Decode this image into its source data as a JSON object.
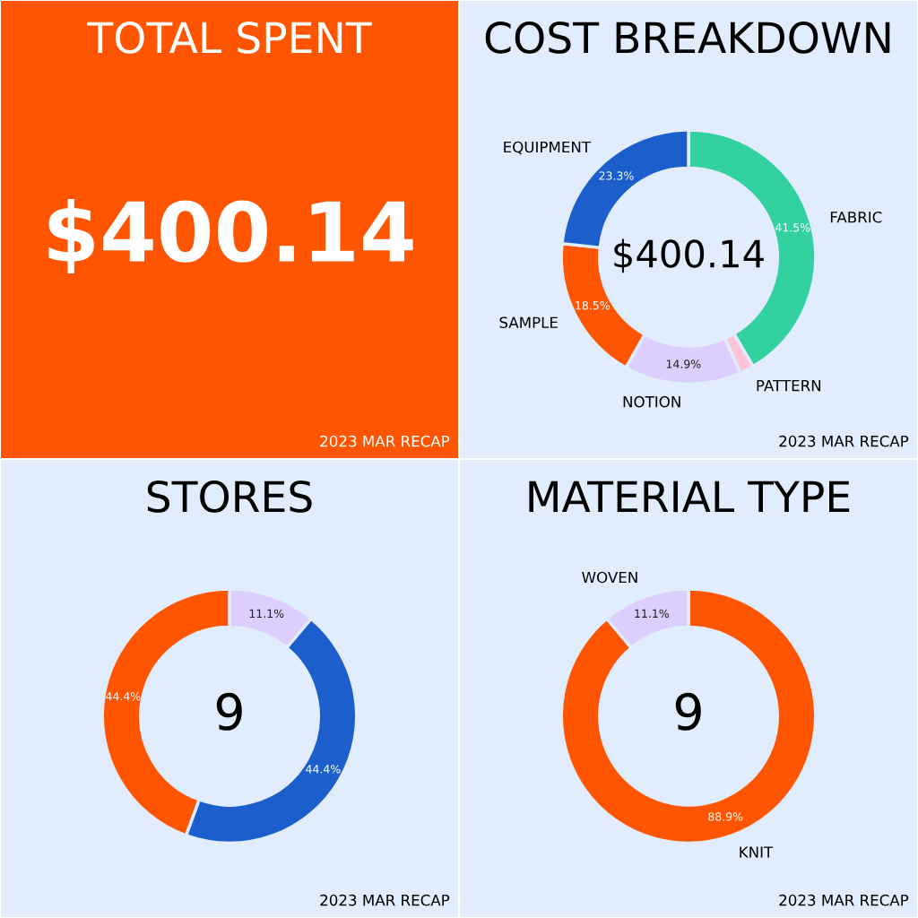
{
  "chart_data": [
    {
      "type": "other",
      "title": "TOTAL SPENT",
      "color": "#ff5500",
      "annotations": [
        "$400.14",
        "2023 MAR RECAP"
      ]
    },
    {
      "type": "donut",
      "title": "COST BREAKDOWN",
      "categories": [
        "FABRIC",
        "PATTERN",
        "NOTION",
        "SAMPLE",
        "EQUIPMENT"
      ],
      "values": [
        41.5,
        1.8,
        14.9,
        18.5,
        23.3
      ],
      "colors": [
        "#33d1a0",
        "#ffc3d8",
        "#dccfff",
        "#ff5500",
        "#1c5fcc"
      ],
      "value_labels": [
        "41.5%",
        null,
        "14.9%",
        "18.5%",
        "23.3%"
      ],
      "legend": false,
      "annotations": [
        "$400.14",
        "2023 MAR RECAP"
      ]
    },
    {
      "type": "donut",
      "title": "STORES",
      "categories": [
        null,
        null,
        null
      ],
      "values": [
        11.1,
        44.4,
        44.4
      ],
      "colors": [
        "#dccfff",
        "#1c5fcc",
        "#ff5500"
      ],
      "value_labels": [
        "11.1%",
        "44.4%",
        "44.4%"
      ],
      "legend": false,
      "annotations": [
        "9",
        "2023 MAR RECAP"
      ]
    },
    {
      "type": "donut",
      "title": "MATERIAL TYPE",
      "categories": [
        "KNIT",
        "WOVEN"
      ],
      "values": [
        88.9,
        11.1
      ],
      "colors": [
        "#ff5500",
        "#dccfff"
      ],
      "value_labels": [
        "88.9%",
        "11.1%"
      ],
      "legend": false,
      "annotations": [
        "9",
        "2023 MAR RECAP"
      ]
    }
  ]
}
